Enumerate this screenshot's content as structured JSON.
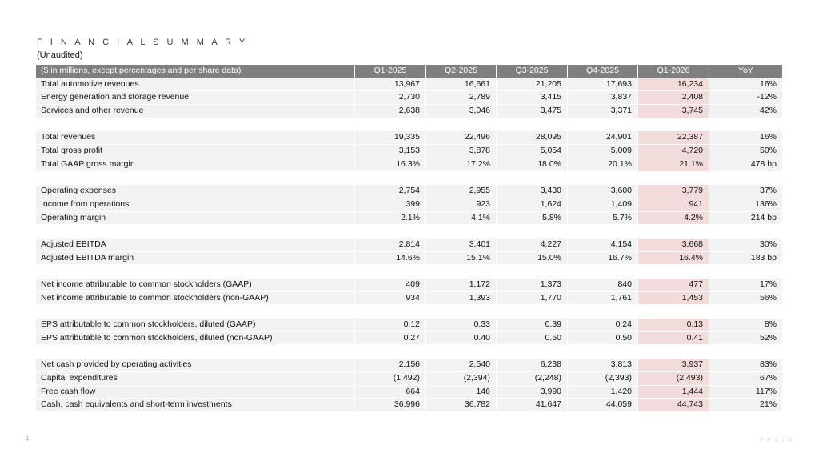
{
  "page": {
    "title": "F I N A N C I A L   S U M M A R Y",
    "subtitle": "(Unaudited)",
    "page_number": "4",
    "brand": "TESLA"
  },
  "colors": {
    "header_bg": "#7f7f7f",
    "header_text": "#ffffff",
    "row_bg": "#f2f2f2",
    "highlight_bg": "#f2dcdb",
    "text": "#111111"
  },
  "table": {
    "header": {
      "label": "($ in millions, except percentages and per share data)",
      "columns": [
        "Q1-2025",
        "Q2-2025",
        "Q3-2025",
        "Q4-2025",
        "Q1-2026",
        "YoY"
      ],
      "highlighted_column": "Q1-2026",
      "highlighted_column_index": 4
    },
    "sections": [
      {
        "rows": [
          {
            "label": "Total automotive revenues",
            "values": [
              "13,967",
              "16,661",
              "21,205",
              "17,693",
              "16,234",
              "16%"
            ]
          },
          {
            "label": "Energy generation and storage revenue",
            "values": [
              "2,730",
              "2,789",
              "3,415",
              "3,837",
              "2,408",
              "-12%"
            ]
          },
          {
            "label": "Services and other revenue",
            "values": [
              "2,638",
              "3,046",
              "3,475",
              "3,371",
              "3,745",
              "42%"
            ]
          }
        ]
      },
      {
        "rows": [
          {
            "label": "Total revenues",
            "values": [
              "19,335",
              "22,496",
              "28,095",
              "24,901",
              "22,387",
              "16%"
            ]
          },
          {
            "label": "Total gross profit",
            "values": [
              "3,153",
              "3,878",
              "5,054",
              "5,009",
              "4,720",
              "50%"
            ]
          },
          {
            "label": "Total GAAP gross margin",
            "values": [
              "16.3%",
              "17.2%",
              "18.0%",
              "20.1%",
              "21.1%",
              "478 bp"
            ]
          }
        ]
      },
      {
        "rows": [
          {
            "label": "Operating expenses",
            "values": [
              "2,754",
              "2,955",
              "3,430",
              "3,600",
              "3,779",
              "37%"
            ]
          },
          {
            "label": "Income from operations",
            "values": [
              "399",
              "923",
              "1,624",
              "1,409",
              "941",
              "136%"
            ]
          },
          {
            "label": "Operating margin",
            "values": [
              "2.1%",
              "4.1%",
              "5.8%",
              "5.7%",
              "4.2%",
              "214 bp"
            ]
          }
        ]
      },
      {
        "rows": [
          {
            "label": "Adjusted EBITDA",
            "values": [
              "2,814",
              "3,401",
              "4,227",
              "4,154",
              "3,668",
              "30%"
            ]
          },
          {
            "label": "Adjusted EBITDA margin",
            "values": [
              "14.6%",
              "15.1%",
              "15.0%",
              "16.7%",
              "16.4%",
              "183 bp"
            ]
          }
        ]
      },
      {
        "rows": [
          {
            "label": "Net income attributable to common stockholders (GAAP)",
            "values": [
              "409",
              "1,172",
              "1,373",
              "840",
              "477",
              "17%"
            ]
          },
          {
            "label": "Net income attributable to common stockholders (non-GAAP)",
            "values": [
              "934",
              "1,393",
              "1,770",
              "1,761",
              "1,453",
              "56%"
            ]
          }
        ]
      },
      {
        "rows": [
          {
            "label": "EPS attributable to common stockholders, diluted (GAAP)",
            "values": [
              "0.12",
              "0.33",
              "0.39",
              "0.24",
              "0.13",
              "8%"
            ]
          },
          {
            "label": "EPS attributable to common stockholders, diluted (non-GAAP)",
            "values": [
              "0.27",
              "0.40",
              "0.50",
              "0.50",
              "0.41",
              "52%"
            ]
          }
        ]
      },
      {
        "rows": [
          {
            "label": "Net cash provided by operating activities",
            "values": [
              "2,156",
              "2,540",
              "6,238",
              "3,813",
              "3,937",
              "83%"
            ]
          },
          {
            "label": "Capital expenditures",
            "values": [
              "(1,492)",
              "(2,394)",
              "(2,248)",
              "(2,393)",
              "(2,493)",
              "67%"
            ]
          },
          {
            "label": "Free cash flow",
            "values": [
              "664",
              "146",
              "3,990",
              "1,420",
              "1,444",
              "117%"
            ]
          },
          {
            "label": "Cash, cash equivalents and short-term investments",
            "values": [
              "36,996",
              "36,782",
              "41,647",
              "44,059",
              "44,743",
              "21%"
            ]
          }
        ]
      }
    ]
  }
}
